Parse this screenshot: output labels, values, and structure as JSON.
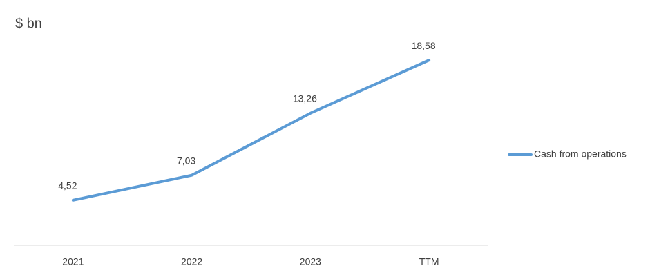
{
  "chart_data": {
    "type": "line",
    "ylabel": "$ bn",
    "categories": [
      "2021",
      "2022",
      "2023",
      "TTM"
    ],
    "series": [
      {
        "name": "Cash from operations",
        "color": "#5b9bd5",
        "values": [
          4.52,
          7.03,
          13.26,
          18.58
        ],
        "value_labels": [
          "4,52",
          "7,03",
          "13,26",
          "18,58"
        ]
      }
    ],
    "ylim": [
      0,
      24
    ],
    "legend": "right"
  }
}
